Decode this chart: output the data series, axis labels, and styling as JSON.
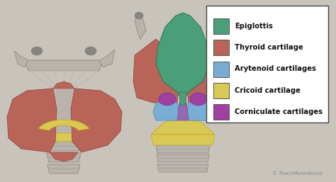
{
  "background_color": "#d8d4cc",
  "fig_bg": "#d0ccc4",
  "legend_items": [
    {
      "label": "Epiglottis",
      "color": "#4a9e7a"
    },
    {
      "label": "Thyroid cartilage",
      "color": "#b86458"
    },
    {
      "label": "Arytenoid cartilages",
      "color": "#7aadd4"
    },
    {
      "label": "Cricoid cartilage",
      "color": "#d8c855"
    },
    {
      "label": "Corniculate cartilages",
      "color": "#a040a0"
    }
  ],
  "watermark": "© TeachMeAnatomy",
  "fig_width": 4.74,
  "fig_height": 2.57,
  "dpi": 100
}
